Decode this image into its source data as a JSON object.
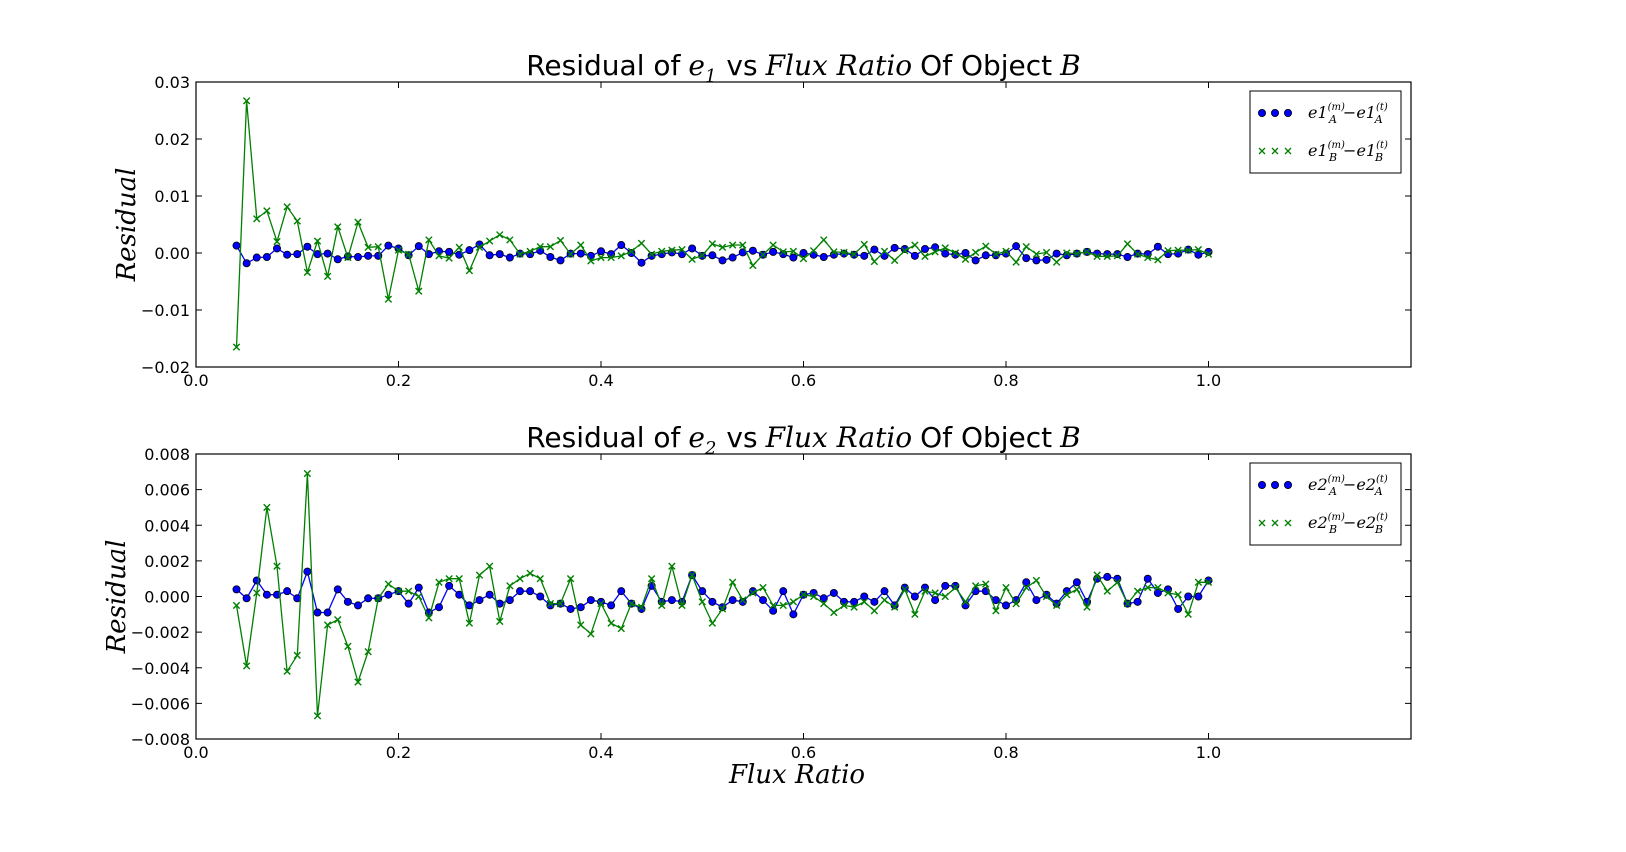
{
  "chart_data": [
    {
      "type": "line",
      "title_prefix": "Residual of",
      "title_symbol": "e",
      "title_subscript": "1",
      "title_vs": "vs",
      "title_var": "Flux Ratio",
      "title_suffix": "Of Object",
      "title_object": "B",
      "ylabel": "Residual",
      "xlabel": "",
      "xlim": [
        0.0,
        1.2
      ],
      "ylim": [
        -0.02,
        0.03
      ],
      "xticks": [
        "0.0",
        "0.2",
        "0.4",
        "0.6",
        "0.8",
        "1.0"
      ],
      "yticks": [
        "0.03",
        "0.02",
        "0.01",
        "0.00",
        "−0.01",
        "−0.02"
      ],
      "legend_position": "top-right",
      "x": [
        0.04,
        0.05,
        0.06,
        0.07,
        0.08,
        0.09,
        0.1,
        0.11,
        0.12,
        0.13,
        0.14,
        0.15,
        0.16,
        0.17,
        0.18,
        0.19,
        0.2,
        0.21,
        0.22,
        0.23,
        0.24,
        0.25,
        0.26,
        0.27,
        0.28,
        0.29,
        0.3,
        0.31,
        0.32,
        0.33,
        0.34,
        0.35,
        0.36,
        0.37,
        0.38,
        0.39,
        0.4,
        0.41,
        0.42,
        0.43,
        0.44,
        0.45,
        0.46,
        0.47,
        0.48,
        0.49,
        0.5,
        0.51,
        0.52,
        0.53,
        0.54,
        0.55,
        0.56,
        0.57,
        0.58,
        0.59,
        0.6,
        0.61,
        0.62,
        0.63,
        0.64,
        0.65,
        0.66,
        0.67,
        0.68,
        0.69,
        0.7,
        0.71,
        0.72,
        0.73,
        0.74,
        0.75,
        0.76,
        0.77,
        0.78,
        0.79,
        0.8,
        0.81,
        0.82,
        0.83,
        0.84,
        0.85,
        0.86,
        0.87,
        0.88,
        0.89,
        0.9,
        0.91,
        0.92,
        0.93,
        0.94,
        0.95,
        0.96,
        0.97,
        0.98,
        0.99,
        1.0
      ],
      "series": [
        {
          "name": "e1A(m) − e1A(t)",
          "legend_base": "e1",
          "legend_sub": "A",
          "legend_sup_m": "(m)",
          "legend_sup_t": "(t)",
          "legend_minus": "−",
          "color": "#0000ff",
          "marker": "circle",
          "values": [
            0.0013,
            -0.0018,
            -0.0008,
            -0.0007,
            0.0008,
            -0.0003,
            -0.0002,
            0.0011,
            -0.0002,
            -0.0001,
            -0.0011,
            -0.0006,
            -0.0007,
            -0.0005,
            -0.0005,
            0.0013,
            0.0008,
            -0.0004,
            0.0012,
            -0.0002,
            0.0003,
            0.0002,
            -0.0003,
            0.0005,
            0.0015,
            -0.0004,
            -0.0002,
            -0.0008,
            -0.0001,
            -0.0002,
            0.0004,
            -0.0007,
            -0.0013,
            -0.0001,
            -0.0001,
            -0.0005,
            0.0003,
            -0.0002,
            0.0014,
            0.0,
            -0.0017,
            -0.0005,
            -0.0002,
            0.0001,
            -0.0002,
            0.0008,
            -0.0005,
            -0.0004,
            -0.0013,
            -0.0008,
            0.0001,
            0.0004,
            -0.0003,
            0.0002,
            -0.0002,
            -0.0008,
            0.0,
            -0.0003,
            -0.0007,
            -0.0003,
            -0.0001,
            -0.0003,
            -0.0005,
            0.0006,
            -0.0005,
            0.0009,
            0.0007,
            -0.0005,
            0.0007,
            0.001,
            -0.0001,
            -0.0003,
            0.0,
            -0.0013,
            -0.0004,
            -0.0004,
            -0.0001,
            0.0012,
            -0.0009,
            -0.0013,
            -0.0012,
            -0.0001,
            -0.0004,
            -0.0001,
            0.0002,
            -0.0001,
            -0.0002,
            -0.0002,
            -0.0007,
            -0.0001,
            -0.0002,
            0.0011,
            -0.0002,
            -0.0001,
            0.0006,
            -0.0003,
            0.0002
          ]
        },
        {
          "name": "e1B(m) − e1B(t)",
          "legend_base": "e1",
          "legend_sub": "B",
          "legend_sup_m": "(m)",
          "legend_sup_t": "(t)",
          "legend_minus": "−",
          "color": "#008000",
          "marker": "x",
          "values": [
            -0.0165,
            0.0267,
            0.006,
            0.0074,
            0.002,
            0.0081,
            0.0056,
            -0.0034,
            0.0021,
            -0.0041,
            0.0046,
            -0.0008,
            0.0054,
            0.001,
            0.0011,
            -0.0081,
            0.0005,
            -0.0002,
            -0.0067,
            0.0023,
            -0.0005,
            -0.0009,
            0.001,
            -0.0031,
            0.001,
            0.0021,
            0.0032,
            0.0023,
            -0.0002,
            0.0003,
            0.0011,
            0.0011,
            0.0022,
            -0.0002,
            0.0014,
            -0.0014,
            -0.0008,
            -0.0008,
            -0.0005,
            0.0003,
            0.0017,
            -0.0002,
            0.0003,
            0.0005,
            0.0006,
            -0.0011,
            -0.0004,
            0.0016,
            0.001,
            0.0014,
            0.0014,
            -0.0022,
            -0.0003,
            0.0014,
            0.0002,
            0.0003,
            -0.001,
            0.0004,
            0.0023,
            0.0002,
            0.0001,
            -0.0002,
            0.0015,
            -0.0015,
            0.0003,
            -0.0013,
            0.0004,
            0.0014,
            -0.0006,
            0.0002,
            0.0009,
            0.0,
            -0.0011,
            0.0001,
            0.0012,
            -0.0002,
            0.0003,
            -0.0016,
            0.0011,
            -0.0002,
            0.0001,
            -0.0016,
            0.0,
            -0.0001,
            0.0002,
            -0.0006,
            -0.0006,
            -0.0005,
            0.0016,
            -0.0002,
            -0.0008,
            -0.0012,
            0.0004,
            0.0005,
            0.0005,
            0.0006,
            -0.0002
          ]
        }
      ]
    },
    {
      "type": "line",
      "title_prefix": "Residual of",
      "title_symbol": "e",
      "title_subscript": "2",
      "title_vs": "vs",
      "title_var": "Flux Ratio",
      "title_suffix": "Of Object",
      "title_object": "B",
      "ylabel": "Residual",
      "xlabel": "Flux Ratio",
      "xlim": [
        0.0,
        1.2
      ],
      "ylim": [
        -0.008,
        0.008
      ],
      "xticks": [
        "0.0",
        "0.2",
        "0.4",
        "0.6",
        "0.8",
        "1.0"
      ],
      "yticks": [
        "0.008",
        "0.006",
        "0.004",
        "0.002",
        "0.000",
        "−0.002",
        "−0.004",
        "−0.006",
        "−0.008"
      ],
      "legend_position": "top-right",
      "x": [
        0.04,
        0.05,
        0.06,
        0.07,
        0.08,
        0.09,
        0.1,
        0.11,
        0.12,
        0.13,
        0.14,
        0.15,
        0.16,
        0.17,
        0.18,
        0.19,
        0.2,
        0.21,
        0.22,
        0.23,
        0.24,
        0.25,
        0.26,
        0.27,
        0.28,
        0.29,
        0.3,
        0.31,
        0.32,
        0.33,
        0.34,
        0.35,
        0.36,
        0.37,
        0.38,
        0.39,
        0.4,
        0.41,
        0.42,
        0.43,
        0.44,
        0.45,
        0.46,
        0.47,
        0.48,
        0.49,
        0.5,
        0.51,
        0.52,
        0.53,
        0.54,
        0.55,
        0.56,
        0.57,
        0.58,
        0.59,
        0.6,
        0.61,
        0.62,
        0.63,
        0.64,
        0.65,
        0.66,
        0.67,
        0.68,
        0.69,
        0.7,
        0.71,
        0.72,
        0.73,
        0.74,
        0.75,
        0.76,
        0.77,
        0.78,
        0.79,
        0.8,
        0.81,
        0.82,
        0.83,
        0.84,
        0.85,
        0.86,
        0.87,
        0.88,
        0.89,
        0.9,
        0.91,
        0.92,
        0.93,
        0.94,
        0.95,
        0.96,
        0.97,
        0.98,
        0.99,
        1.0
      ],
      "series": [
        {
          "name": "e2A(m) − e2A(t)",
          "legend_base": "e2",
          "legend_sub": "A",
          "legend_sup_m": "(m)",
          "legend_sup_t": "(t)",
          "legend_minus": "−",
          "color": "#0000ff",
          "marker": "circle",
          "values": [
            0.0004,
            -0.0001,
            0.0009,
            0.0001,
            0.0001,
            0.0003,
            -0.0001,
            0.0014,
            -0.0009,
            -0.0009,
            0.0004,
            -0.0003,
            -0.0005,
            -0.0001,
            -0.0001,
            0.0001,
            0.0003,
            -0.0004,
            0.0005,
            -0.0009,
            -0.0006,
            0.0006,
            0.0001,
            -0.0005,
            -0.0002,
            0.0001,
            -0.0004,
            -0.0002,
            0.0003,
            0.0003,
            0.0,
            -0.0005,
            -0.0004,
            -0.0007,
            -0.0006,
            -0.0002,
            -0.0003,
            -0.0005,
            0.0003,
            -0.0004,
            -0.0007,
            0.0006,
            -0.0003,
            -0.0002,
            -0.0003,
            0.0012,
            0.0003,
            -0.0003,
            -0.0006,
            -0.0002,
            -0.0003,
            0.0003,
            -0.0002,
            -0.0008,
            0.0003,
            -0.001,
            0.0001,
            0.0002,
            -0.0001,
            0.0002,
            -0.0003,
            -0.0003,
            0.0,
            -0.0003,
            0.0003,
            -0.0005,
            0.0005,
            0.0,
            0.0005,
            -0.0002,
            0.0006,
            0.0006,
            -0.0005,
            0.0003,
            0.0003,
            -0.0002,
            -0.0005,
            -0.0002,
            0.0008,
            -0.0002,
            0.0001,
            -0.0004,
            0.0003,
            0.0008,
            -0.0003,
            0.001,
            0.0011,
            0.001,
            -0.0004,
            -0.0003,
            0.001,
            0.0002,
            0.0004,
            -0.0007,
            0.0,
            0.0,
            0.0009
          ]
        },
        {
          "name": "e2B(m) − e2B(t)",
          "legend_base": "e2",
          "legend_sub": "B",
          "legend_sup_m": "(m)",
          "legend_sup_t": "(t)",
          "legend_minus": "−",
          "color": "#008000",
          "marker": "x",
          "values": [
            -0.0005,
            -0.0039,
            0.0002,
            0.005,
            0.0017,
            -0.0042,
            -0.0033,
            0.0069,
            -0.0067,
            -0.0016,
            -0.0013,
            -0.0028,
            -0.0048,
            -0.0031,
            -0.0001,
            0.0007,
            0.0003,
            0.0003,
            0.0,
            -0.0012,
            0.0008,
            0.001,
            0.001,
            -0.0015,
            0.0012,
            0.0017,
            -0.0014,
            0.0006,
            0.001,
            0.0013,
            0.001,
            -0.0004,
            -0.0004,
            0.001,
            -0.0016,
            -0.0021,
            -0.0004,
            -0.0015,
            -0.0018,
            -0.0004,
            -0.0006,
            0.001,
            -0.0005,
            0.0017,
            -0.0005,
            0.0012,
            -0.0003,
            -0.0015,
            -0.0007,
            0.0008,
            -0.0002,
            0.0002,
            0.0005,
            -0.0005,
            -0.0005,
            -0.0003,
            0.0001,
            0.0,
            -0.0004,
            -0.0009,
            -0.0005,
            -0.0006,
            -0.0003,
            -0.0008,
            -0.0002,
            -0.0006,
            0.0004,
            -0.001,
            0.0003,
            0.0002,
            0.0,
            0.0005,
            -0.0003,
            0.0006,
            0.0007,
            -0.0008,
            0.0005,
            -0.0004,
            0.0005,
            0.0009,
            0.0,
            -0.0005,
            0.0001,
            0.0004,
            -0.0006,
            0.0012,
            0.0003,
            0.0008,
            -0.0004,
            0.0003,
            0.0005,
            0.0005,
            0.0002,
            0.0001,
            -0.001,
            0.0008,
            0.0008
          ]
        }
      ]
    }
  ]
}
